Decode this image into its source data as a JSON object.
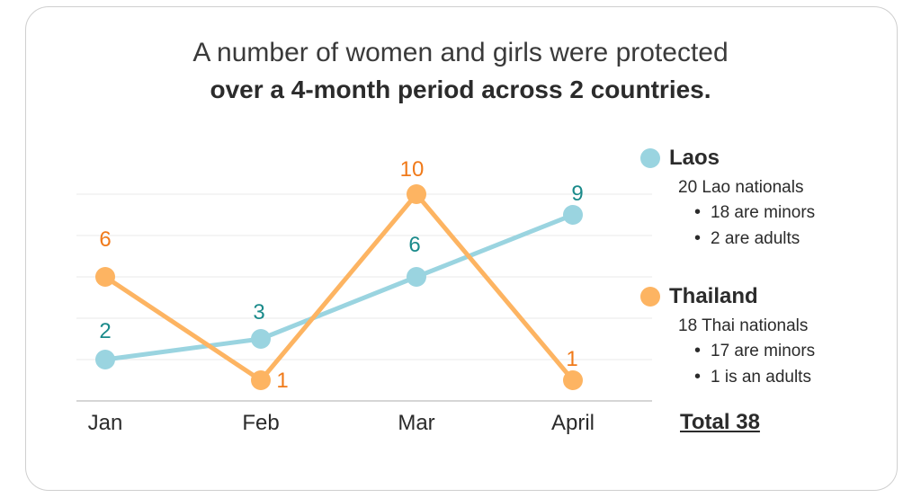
{
  "title": {
    "line1": "A number of women and girls were protected",
    "line2": "over a 4-month period across 2 countries."
  },
  "colors": {
    "laos": "#9ad4e0",
    "laos_label": "#1a8a8a",
    "thailand": "#fdb462",
    "thailand_label": "#f07a1a",
    "grid": "#e8e8e8"
  },
  "chart_data": {
    "type": "line",
    "categories": [
      "Jan",
      "Feb",
      "Mar",
      "April"
    ],
    "ylim": [
      0,
      11
    ],
    "grid": true,
    "series": [
      {
        "name": "Laos",
        "values": [
          2,
          3,
          6,
          9
        ]
      },
      {
        "name": "Thailand",
        "values": [
          6,
          1,
          10,
          1
        ]
      }
    ]
  },
  "legend": {
    "laos": {
      "name": "Laos",
      "summary": "20 Lao nationals",
      "items": [
        "18 are minors",
        "2 are adults"
      ]
    },
    "thailand": {
      "name": "Thailand",
      "summary": "18 Thai nationals",
      "items": [
        "17 are minors",
        "1 is an adults"
      ]
    }
  },
  "total": "Total 38"
}
